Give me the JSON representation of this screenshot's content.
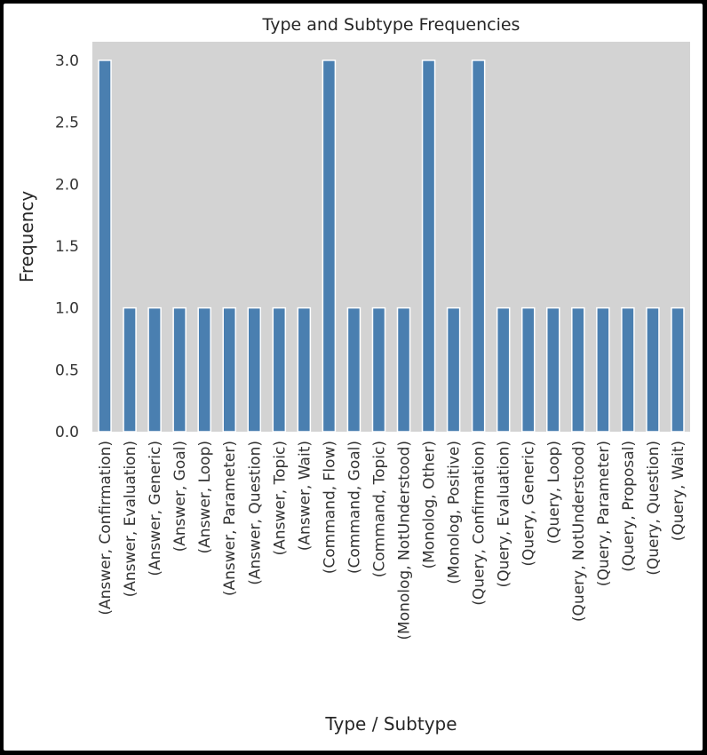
{
  "chart_data": {
    "type": "bar",
    "title": "Type and Subtype Frequencies",
    "xlabel": "Type / Subtype",
    "ylabel": "Frequency",
    "ylim": [
      0,
      3.15
    ],
    "yticks": [
      "0.0",
      "0.5",
      "1.0",
      "1.5",
      "2.0",
      "2.5",
      "3.0"
    ],
    "grid": false,
    "categories": [
      "(Answer, Confirmation)",
      "(Answer, Evaluation)",
      "(Answer, Generic)",
      "(Answer, Goal)",
      "(Answer, Loop)",
      "(Answer, Parameter)",
      "(Answer, Question)",
      "(Answer, Topic)",
      "(Answer, Wait)",
      "(Command, Flow)",
      "(Command, Goal)",
      "(Command, Topic)",
      "(Monolog, NotUnderstood)",
      "(Monolog, Other)",
      "(Monolog, Positive)",
      "(Query, Confirmation)",
      "(Query, Evaluation)",
      "(Query, Generic)",
      "(Query, Loop)",
      "(Query, NotUnderstood)",
      "(Query, Parameter)",
      "(Query, Proposal)",
      "(Query, Question)",
      "(Query, Wait)"
    ],
    "values": [
      3,
      1,
      1,
      1,
      1,
      1,
      1,
      1,
      1,
      3,
      1,
      1,
      1,
      3,
      1,
      3,
      1,
      1,
      1,
      1,
      1,
      1,
      1,
      1
    ],
    "colors": {
      "bar": "#4a7fb0",
      "plot_background": "#d3d3d3"
    }
  }
}
